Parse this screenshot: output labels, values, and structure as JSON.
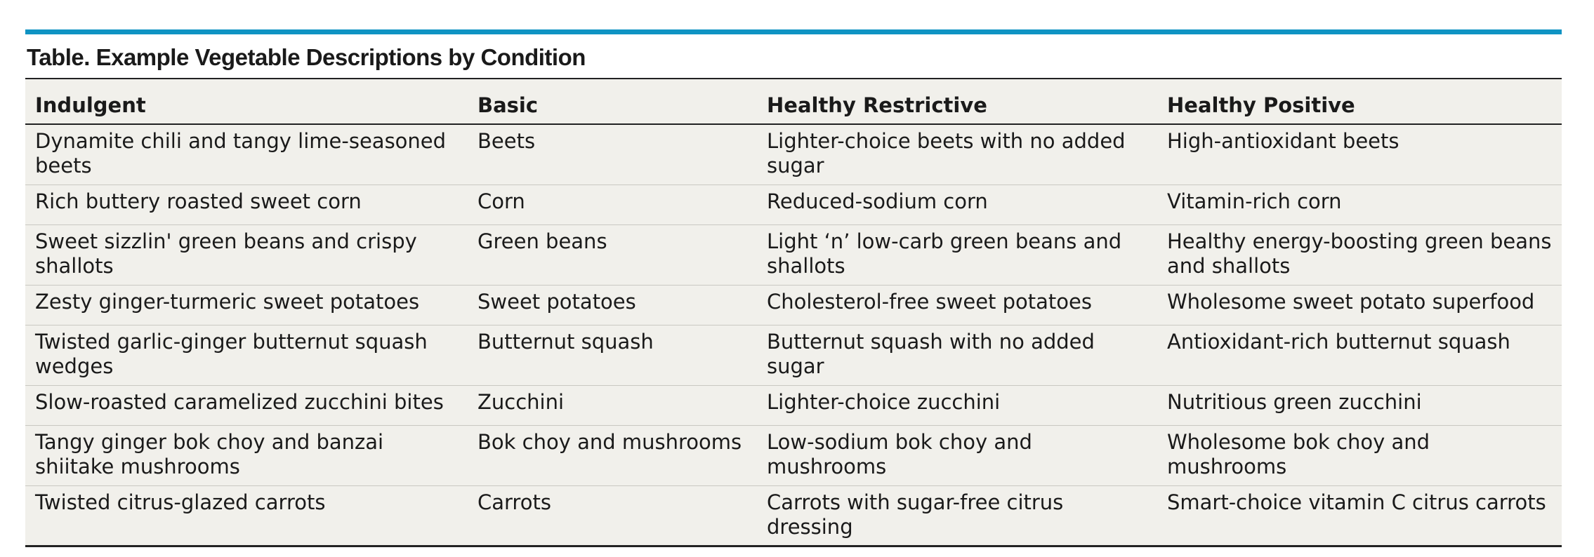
{
  "table": {
    "caption": "Table. Example Vegetable Descriptions by Condition",
    "headers": [
      "Indulgent",
      "Basic",
      "Healthy Restrictive",
      "Healthy Positive"
    ],
    "rows": [
      [
        "Dynamite chili and tangy lime-seasoned beets",
        "Beets",
        "Lighter-choice beets with no added sugar",
        "High-antioxidant beets"
      ],
      [
        "Rich buttery roasted sweet corn",
        "Corn",
        "Reduced-sodium corn",
        "Vitamin-rich corn"
      ],
      [
        "Sweet sizzlin' green beans and crispy shallots",
        "Green beans",
        "Light ‘n’ low-carb green beans and shallots",
        "Healthy energy-boosting green beans and shallots"
      ],
      [
        "Zesty ginger-turmeric sweet potatoes",
        "Sweet potatoes",
        "Cholesterol-free sweet potatoes",
        "Wholesome sweet potato superfood"
      ],
      [
        "Twisted garlic-ginger butternut squash wedges",
        "Butternut squash",
        "Butternut squash with no added sugar",
        "Antioxidant-rich butternut squash"
      ],
      [
        "Slow-roasted caramelized zucchini bites",
        "Zucchini",
        "Lighter-choice zucchini",
        "Nutritious green zucchini"
      ],
      [
        "Tangy ginger bok choy and banzai shiitake mushrooms",
        "Bok choy and mushrooms",
        "Low-sodium bok choy and mushrooms",
        "Wholesome bok choy and mushrooms"
      ],
      [
        "Twisted citrus-glazed carrots",
        "Carrots",
        "Carrots with sugar-free citrus dressing",
        "Smart-choice vitamin C citrus carrots"
      ]
    ]
  },
  "colors": {
    "accent_rule": "#0f93c3",
    "table_background": "#f1f0eb"
  }
}
